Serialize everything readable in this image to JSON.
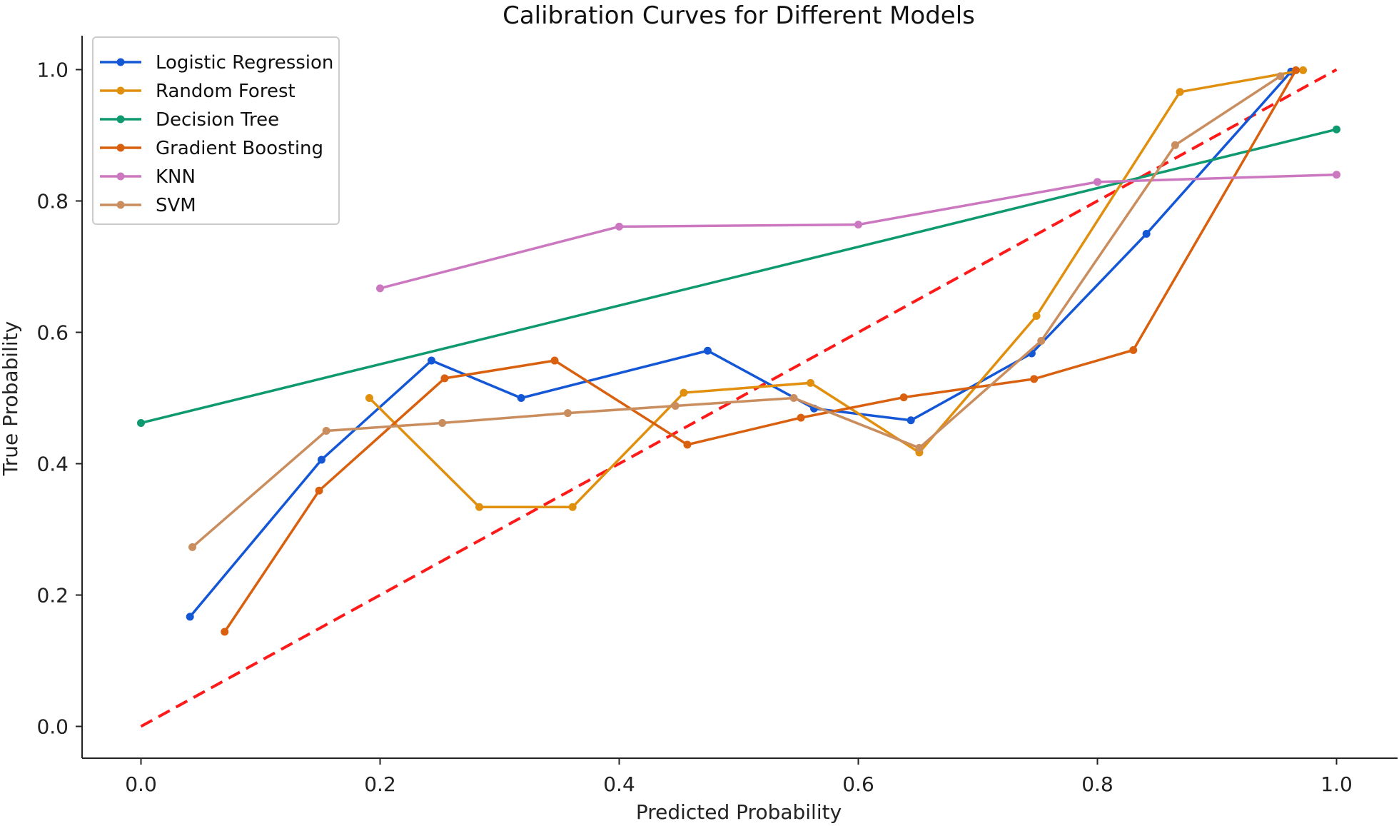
{
  "chart_data": {
    "type": "line",
    "title": "Calibration Curves for Different Models",
    "xlabel": "Predicted Probability",
    "ylabel": "True Probability",
    "xlim": [
      -0.05,
      1.05
    ],
    "ylim": [
      -0.05,
      1.05
    ],
    "xticks": [
      "0.0",
      "0.2",
      "0.4",
      "0.6",
      "0.8",
      "1.0"
    ],
    "yticks": [
      "0.0",
      "0.2",
      "0.4",
      "0.6",
      "0.8",
      "1.0"
    ],
    "grid": false,
    "legend_position": "top-left",
    "reference_line": {
      "x": [
        0,
        1
      ],
      "y": [
        0,
        1
      ],
      "color": "#ff1a1a",
      "style": "dashed"
    },
    "series": [
      {
        "name": "Logistic Regression",
        "color": "#1457d6",
        "x": [
          0.041,
          0.151,
          0.243,
          0.318,
          0.474,
          0.563,
          0.644,
          0.745,
          0.841,
          0.962
        ],
        "y": [
          0.167,
          0.406,
          0.557,
          0.5,
          0.572,
          0.484,
          0.466,
          0.568,
          0.75,
          0.997
        ]
      },
      {
        "name": "Random Forest",
        "color": "#e0900e",
        "x": [
          0.191,
          0.283,
          0.361,
          0.454,
          0.56,
          0.651,
          0.749,
          0.869,
          0.972
        ],
        "y": [
          0.5,
          0.334,
          0.334,
          0.508,
          0.523,
          0.417,
          0.625,
          0.966,
          0.999
        ]
      },
      {
        "name": "Decision Tree",
        "color": "#0e9a6e",
        "x": [
          0.0,
          1.0
        ],
        "y": [
          0.462,
          0.909
        ]
      },
      {
        "name": "Gradient Boosting",
        "color": "#d8600e",
        "x": [
          0.07,
          0.149,
          0.254,
          0.346,
          0.457,
          0.552,
          0.638,
          0.747,
          0.83,
          0.966
        ],
        "y": [
          0.144,
          0.359,
          0.53,
          0.557,
          0.429,
          0.47,
          0.501,
          0.529,
          0.573,
          0.999
        ]
      },
      {
        "name": "KNN",
        "color": "#cc78c0",
        "x": [
          0.2,
          0.4,
          0.6,
          0.8,
          1.0
        ],
        "y": [
          0.667,
          0.761,
          0.764,
          0.829,
          0.84
        ]
      },
      {
        "name": "SVM",
        "color": "#c98d5e",
        "x": [
          0.043,
          0.155,
          0.252,
          0.357,
          0.447,
          0.546,
          0.651,
          0.753,
          0.865,
          0.953
        ],
        "y": [
          0.273,
          0.45,
          0.462,
          0.477,
          0.488,
          0.5,
          0.424,
          0.587,
          0.885,
          0.99
        ]
      }
    ]
  }
}
